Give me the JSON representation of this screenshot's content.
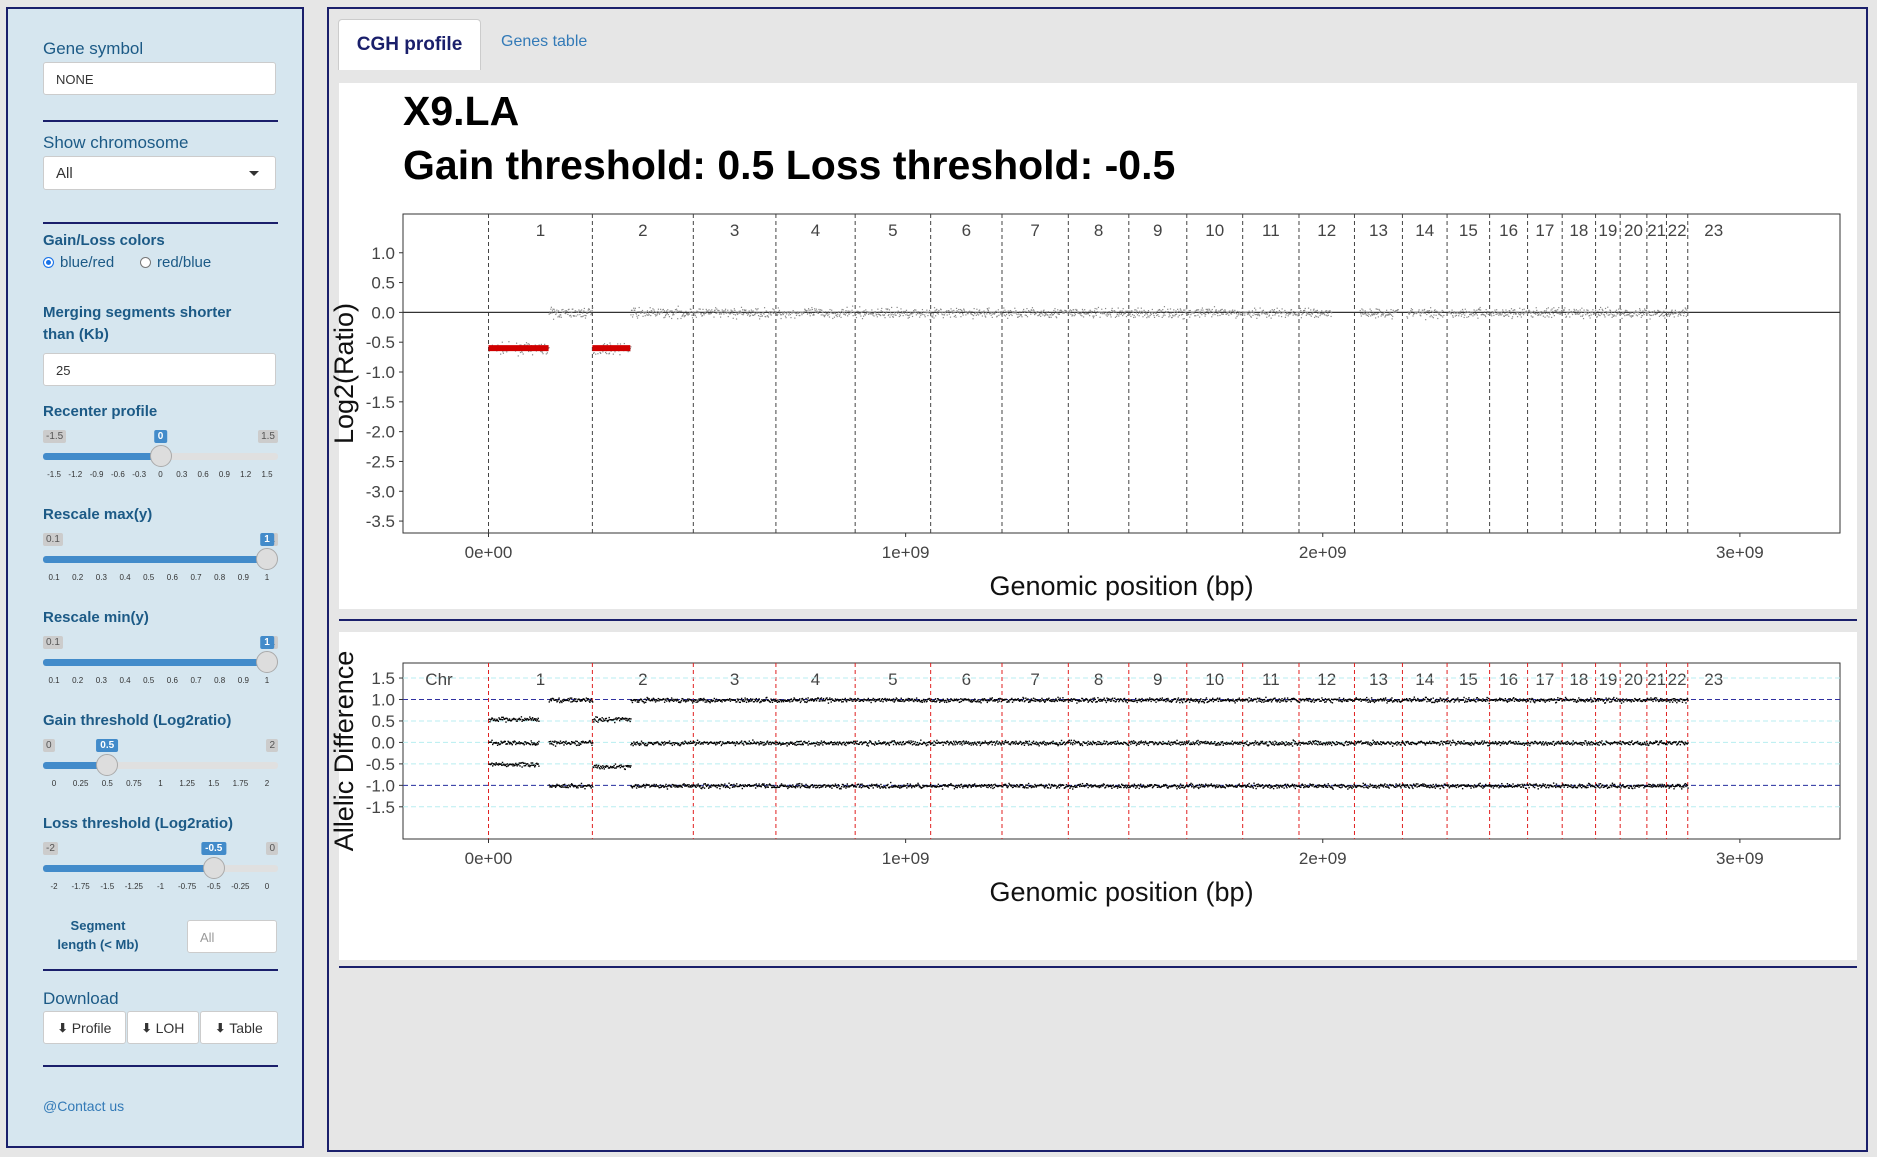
{
  "sidebar": {
    "gene_symbol": {
      "label": "Gene symbol",
      "value": "NONE"
    },
    "show_chromosome": {
      "label": "Show chromosome",
      "value": "All"
    },
    "gain_loss_colors": {
      "label": "Gain/Loss colors",
      "options": [
        "blue/red",
        "red/blue"
      ],
      "selected": "blue/red"
    },
    "merging": {
      "label": "Merging segments shorter than (Kb)",
      "value": "25"
    },
    "recenter": {
      "label": "Recenter profile",
      "min": "-1.5",
      "max": "1.5",
      "value": "0",
      "ticks": [
        "-1.5",
        "-1.2",
        "-0.9",
        "-0.6",
        "-0.3",
        "0",
        "0.3",
        "0.6",
        "0.9",
        "1.2",
        "1.5"
      ],
      "fraction": 0.5
    },
    "rescale_max": {
      "label": "Rescale max(y)",
      "min": "0.1",
      "max": "1",
      "value": "1",
      "ticks": [
        "0.1",
        "0.2",
        "0.3",
        "0.4",
        "0.5",
        "0.6",
        "0.7",
        "0.8",
        "0.9",
        "1"
      ],
      "fraction": 1.0
    },
    "rescale_min": {
      "label": "Rescale min(y)",
      "min": "0.1",
      "max": "1",
      "value": "1",
      "ticks": [
        "0.1",
        "0.2",
        "0.3",
        "0.4",
        "0.5",
        "0.6",
        "0.7",
        "0.8",
        "0.9",
        "1"
      ],
      "fraction": 1.0
    },
    "gain_threshold": {
      "label": "Gain threshold (Log2ratio)",
      "min": "0",
      "max": "2",
      "value": "0.5",
      "ticks": [
        "0",
        "0.25",
        "0.5",
        "0.75",
        "1",
        "1.25",
        "1.5",
        "1.75",
        "2"
      ],
      "fraction": 0.25
    },
    "loss_threshold": {
      "label": "Loss threshold (Log2ratio)",
      "min": "-2",
      "max": "0",
      "value": "-0.5",
      "ticks": [
        "-2",
        "-1.75",
        "-1.5",
        "-1.25",
        "-1",
        "-0.75",
        "-0.5",
        "-0.25",
        "0"
      ],
      "fraction": 0.75
    },
    "segment_length": {
      "label_line1": "Segment",
      "label_line2": "length (< Mb)",
      "placeholder": "All"
    },
    "download": {
      "label": "Download",
      "buttons": [
        "Profile",
        "LOH",
        "Table"
      ]
    },
    "contact": "@Contact us"
  },
  "tabs": [
    "CGH profile",
    "Genes table"
  ],
  "active_tab": "CGH profile",
  "chart_data": [
    {
      "type": "scatter",
      "title": "X9.LA",
      "subtitle": "Gain threshold:  0.5  Loss threshold: -0.5",
      "xlabel": "Genomic position (bp)",
      "ylabel": "Log2(Ratio)",
      "xlim": [
        -205000000.0,
        3240000000.0
      ],
      "ylim": [
        -3.7,
        1.65
      ],
      "x_ticks": [
        "0e+00",
        "1e+09",
        "2e+09",
        "3e+09"
      ],
      "y_ticks": [
        "1.0",
        "0.5",
        "0.0",
        "-0.5",
        "-1.0",
        "-1.5",
        "-2.0",
        "-2.5",
        "-3.0",
        "-3.5"
      ],
      "chromosomes": [
        "1",
        "2",
        "3",
        "4",
        "5",
        "6",
        "7",
        "8",
        "9",
        "10",
        "11",
        "12",
        "13",
        "14",
        "15",
        "16",
        "17",
        "18",
        "19",
        "20",
        "21",
        "22",
        "23"
      ],
      "chrom_boundaries": [
        0,
        249000000.0,
        491000000.0,
        689000000.0,
        879000000.0,
        1060000000.0,
        1231000000.0,
        1390000000.0,
        1535000000.0,
        1674000000.0,
        1808000000.0,
        1943000000.0,
        2076000000.0,
        2191000000.0,
        2298000000.0,
        2400000000.0,
        2491000000.0,
        2574000000.0,
        2654000000.0,
        2713000000.0,
        2777000000.0,
        2824000000.0,
        2875000000.0
      ],
      "segments": [
        {
          "x": [
            0,
            144000000.0
          ],
          "y": -0.6,
          "color": "#d00000"
        },
        {
          "x": 144000000.0,
          "x_end": 249000000.0,
          "y": 0.0,
          "color": "#777777"
        },
        {
          "x": [
            249000000.0,
            340000000.0
          ],
          "y": -0.6,
          "color": "#d00000"
        },
        {
          "x": [
            340000000.0,
            2875000000.0
          ],
          "y": 0.0,
          "color": "#777777"
        }
      ],
      "data_gaps": [
        [
          2020000000.0,
          2088000000.0
        ],
        [
          2180000000.0,
          2200000000.0
        ],
        [
          2290000000.0,
          2300000000.0
        ]
      ]
    },
    {
      "type": "scatter",
      "xlabel": "Genomic position (bp)",
      "ylabel": "Allelic Difference",
      "xlim": [
        -205000000.0,
        3240000000.0
      ],
      "ylim": [
        -2.25,
        1.85
      ],
      "x_ticks": [
        "0e+00",
        "1e+09",
        "2e+09",
        "3e+09"
      ],
      "y_ticks": [
        "1.5",
        "1.0",
        "0.5",
        "0.0",
        "-0.5",
        "-1.0",
        "-1.5"
      ],
      "chr_label": "Chr",
      "reference_lines": [
        1.0,
        -1.0
      ],
      "bands": [
        {
          "x": [
            0,
            120000000.0
          ],
          "levels": [
            0.55,
            0.0,
            -0.5
          ]
        },
        {
          "x": [
            144000000.0,
            249000000.0
          ],
          "levels": [
            1.0,
            0.0,
            -1.0
          ]
        },
        {
          "x": [
            249000000.0,
            340000000.0
          ],
          "levels": [
            0.55,
            -0.55
          ]
        },
        {
          "x": [
            340000000.0,
            2875000000.0
          ],
          "levels": [
            1.0,
            0.0,
            -1.0
          ]
        }
      ]
    }
  ]
}
